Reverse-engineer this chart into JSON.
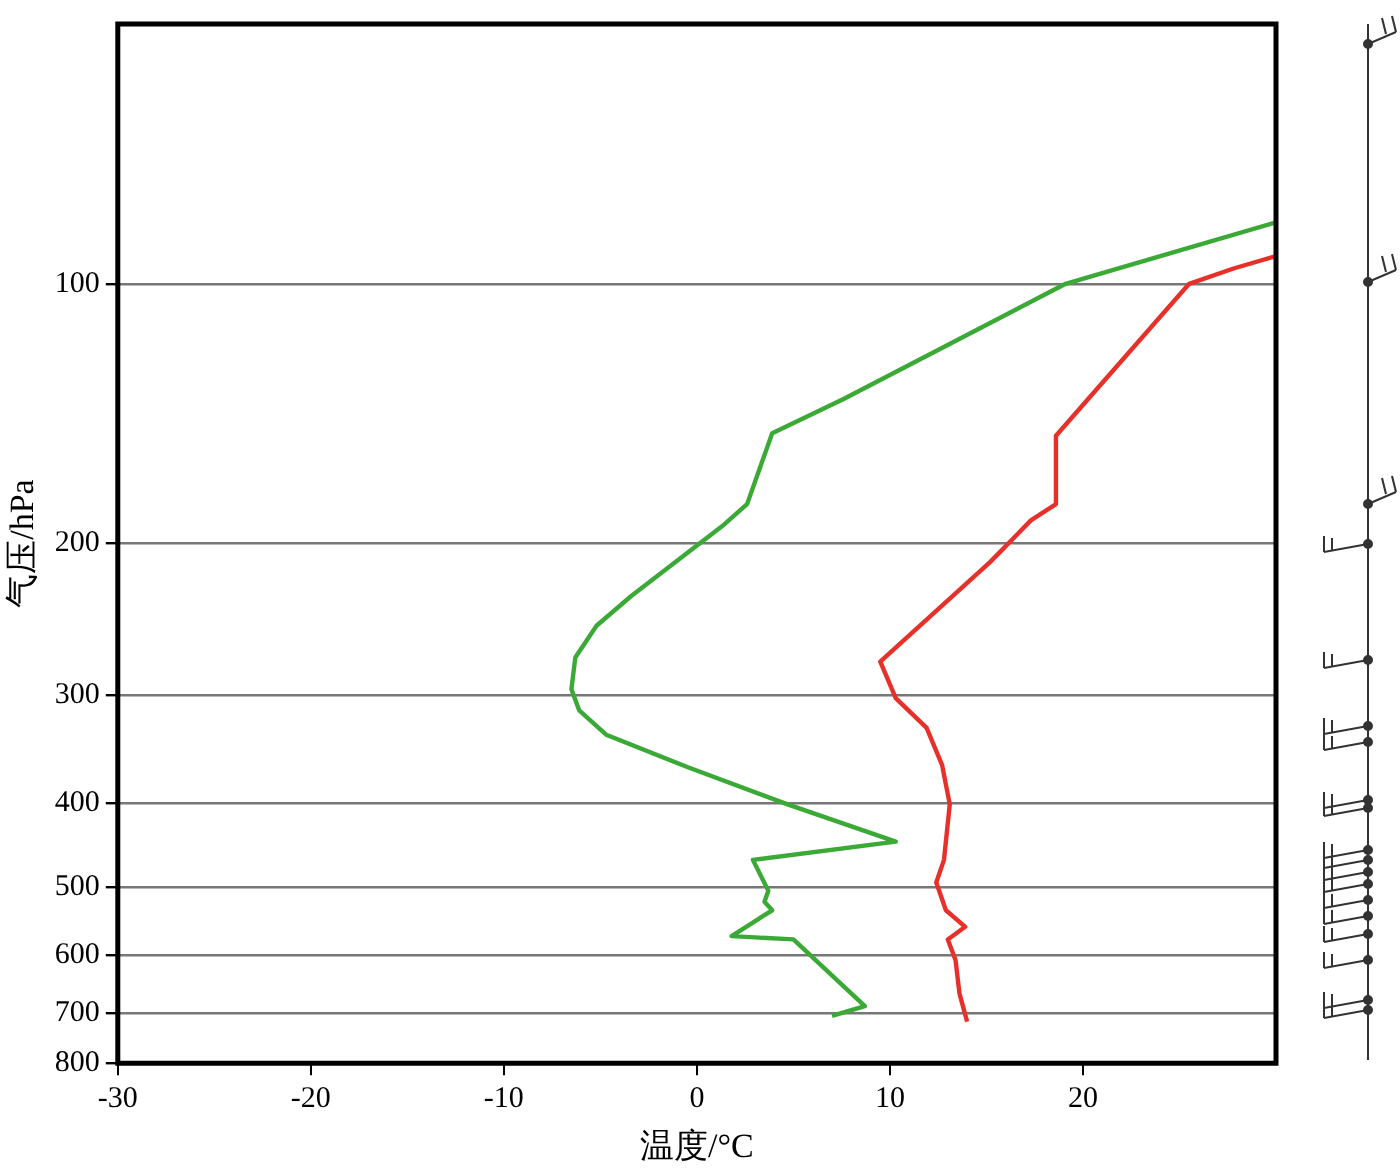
{
  "chart_data": {
    "type": "line",
    "xlabel": "温度/°C",
    "ylabel": "气压/hPa",
    "series": [
      {
        "color": "#e8302a",
        "x": [
          29.9,
          27.8,
          25.5,
          18.6,
          18.6,
          17.3,
          15.2,
          9.5,
          10.3,
          11.9,
          12.7,
          13.1,
          12.8,
          12.4,
          12.9,
          13.9,
          13.0,
          13.4,
          13.6,
          14.0
        ],
        "values": [
          93,
          96,
          100,
          150,
          180,
          188,
          210,
          274,
          302,
          327,
          361,
          401,
          465,
          494,
          532,
          556,
          575,
          608,
          664,
          716
        ]
      },
      {
        "color": "#3aa935",
        "x": [
          29.9,
          19.1,
          7.6,
          3.9,
          2.6,
          1.3,
          -3.4,
          -5.2,
          -6.3,
          -6.5,
          -6.1,
          -4.7,
          -0.5,
          4.7,
          10.3,
          2.9,
          3.7,
          3.5,
          3.9,
          3.1,
          1.8,
          5.0,
          8.7,
          7.0
        ],
        "values": [
          85,
          100,
          136,
          149,
          180,
          191,
          230,
          249,
          271,
          295,
          312,
          333,
          363,
          401,
          443,
          465,
          505,
          520,
          532,
          546,
          570,
          575,
          687,
          705
        ]
      }
    ],
    "xlim": [
      -30,
      30
    ],
    "xticks": [
      -30,
      -20,
      -10,
      0,
      10,
      20
    ],
    "ylim": [
      800,
      50
    ],
    "yticks": [
      100,
      200,
      300,
      400,
      500,
      600,
      700,
      800
    ],
    "log": "y",
    "grid": "y",
    "marker": "none",
    "line_style": "solid"
  }
}
